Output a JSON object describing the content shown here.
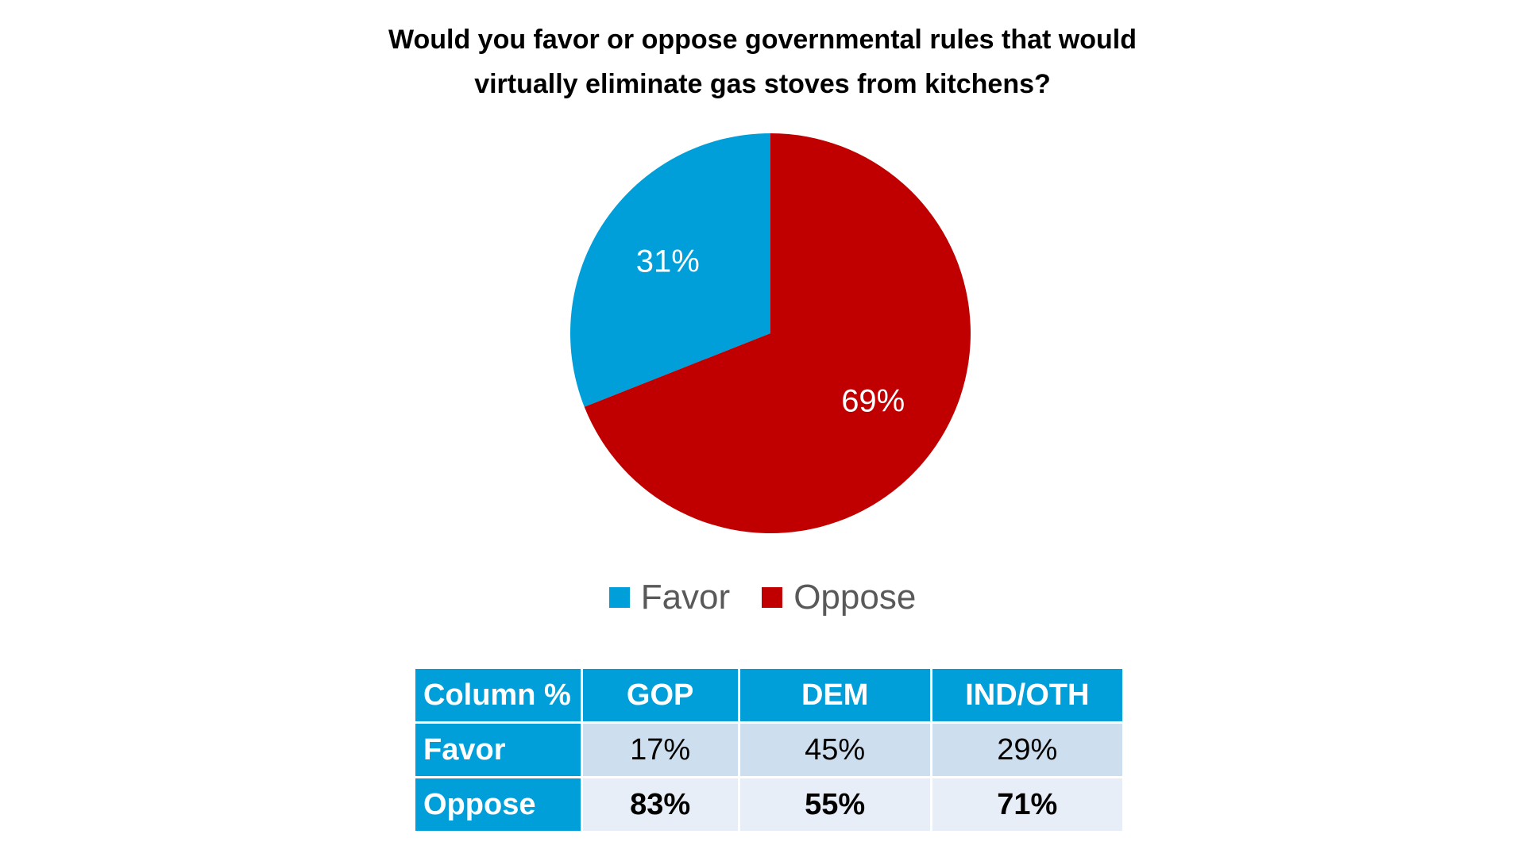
{
  "chart_data": {
    "type": "pie",
    "title_lines": [
      "Would you favor or oppose governmental rules that would",
      "virtually eliminate gas stoves from kitchens?"
    ],
    "slices": [
      {
        "name": "Favor",
        "value": 31,
        "label": "31%",
        "color": "#009fd9"
      },
      {
        "name": "Oppose",
        "value": 69,
        "label": "69%",
        "color": "#c00000"
      }
    ],
    "legend": {
      "placement": "bottom",
      "items": [
        {
          "label": "Favor",
          "color": "#009fd9"
        },
        {
          "label": "Oppose",
          "color": "#c00000"
        }
      ]
    }
  },
  "table": {
    "headers": [
      "Column %",
      "GOP",
      "DEM",
      "IND/OTH"
    ],
    "rows": [
      {
        "label": "Favor",
        "values": [
          "17%",
          "45%",
          "29%"
        ]
      },
      {
        "label": "Oppose",
        "values": [
          "83%",
          "55%",
          "71%"
        ]
      }
    ],
    "header_color": "#009fd9"
  }
}
